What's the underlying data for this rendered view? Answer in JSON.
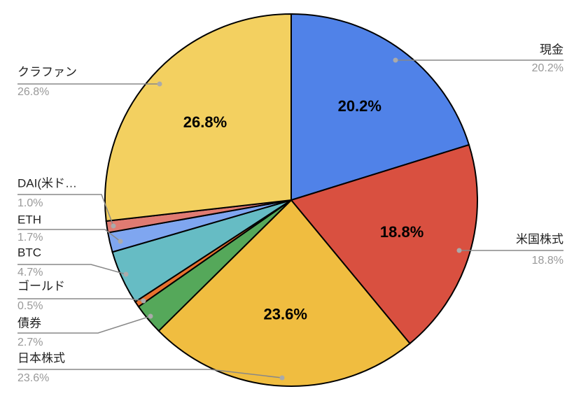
{
  "chart_data": {
    "type": "pie",
    "categories": [
      "現金",
      "米国株式",
      "日本株式",
      "債券",
      "ゴールド",
      "BTC",
      "ETH",
      "DAI(米ド…",
      "クラファン"
    ],
    "values": [
      20.2,
      18.8,
      23.6,
      2.7,
      0.5,
      4.7,
      1.7,
      1.0,
      26.8
    ],
    "value_labels": [
      "20.2%",
      "18.8%",
      "23.6%",
      "2.7%",
      "0.5%",
      "4.7%",
      "1.7%",
      "1.0%",
      "26.8%"
    ],
    "colors": [
      "#5082e8",
      "#d95040",
      "#f0bd40",
      "#55a85a",
      "#e8712f",
      "#66bcc4",
      "#7fa6f0",
      "#e07b72",
      "#f3d060"
    ]
  }
}
